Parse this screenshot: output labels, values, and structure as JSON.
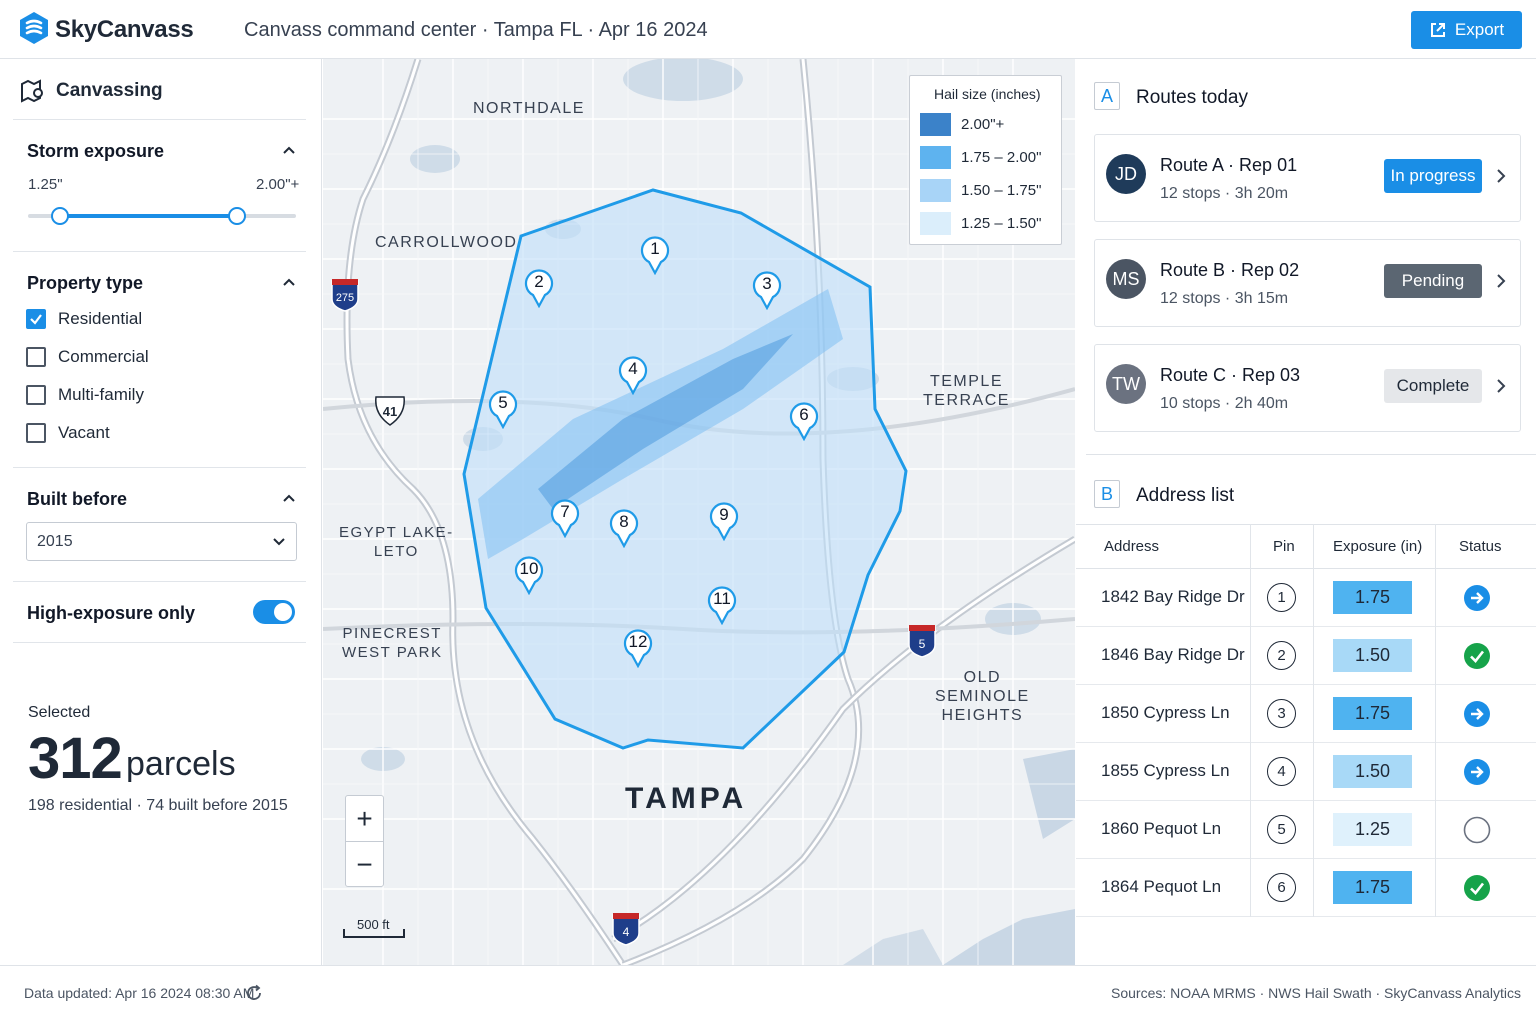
{
  "header": {
    "brand": "SkyCanvass",
    "title": "Canvass command center · Tampa FL · Apr 16 2024",
    "export_label": "Export"
  },
  "left": {
    "panel_title": "Canvassing",
    "storm": {
      "title": "Storm exposure",
      "min_label": "1.25\"",
      "max_label": "2.00\"+",
      "low_pct": 0.12,
      "high_pct": 0.78
    },
    "property": {
      "title": "Property type",
      "options": [
        {
          "label": "Residential",
          "checked": true
        },
        {
          "label": "Commercial",
          "checked": false
        },
        {
          "label": "Multi-family",
          "checked": false
        },
        {
          "label": "Vacant",
          "checked": false
        }
      ]
    },
    "built": {
      "title": "Built before",
      "value": "2015"
    },
    "high_exposure": {
      "label": "High-exposure only",
      "on": true
    },
    "selected": {
      "label": "Selected",
      "count": "312",
      "unit": "parcels",
      "sub": "198 residential · 74 built before 2015"
    }
  },
  "map": {
    "places": {
      "northdale": "NORTHDALE",
      "carrollwood": "CARROLLWOOD",
      "temple_terrace": "TEMPLE\nTERRACE",
      "egypt_lake": "EGYPT LAKE-\nLETO",
      "pinecrest": "PINECREST\nWEST PARK",
      "old_seminole": "OLD\nSEMINOLE\nHEIGHTS",
      "tampa": "TAMPA"
    },
    "highways": {
      "i275": "275",
      "us41": "41",
      "i5": "5",
      "i4": "4"
    },
    "legend": {
      "title": "Hail size (inches)",
      "items": [
        {
          "label": "2.00\"+",
          "color": "#3b82c9"
        },
        {
          "label": "1.75 – 2.00\"",
          "color": "#5eb3ef"
        },
        {
          "label": "1.50 – 1.75\"",
          "color": "#a8d4f7"
        },
        {
          "label": "1.25 – 1.50\"",
          "color": "#dbeefb"
        }
      ]
    },
    "pins": [
      "1",
      "2",
      "3",
      "4",
      "5",
      "6",
      "7",
      "8",
      "9",
      "10",
      "11",
      "12"
    ],
    "zoom_in": "+",
    "zoom_out": "−",
    "scale_label": "500 ft"
  },
  "right": {
    "routes_letter": "A",
    "routes_title": "Routes today",
    "routes": [
      {
        "initials": "JD",
        "name": "Route A · Rep 01",
        "sub": "12 stops · 3h 20m",
        "status": "In progress",
        "avatar_color": "#1f3b5a",
        "badge_bg": "#1a8ee6",
        "badge_fg": "#ffffff"
      },
      {
        "initials": "MS",
        "name": "Route B · Rep 02",
        "sub": "12 stops · 3h 15m",
        "status": "Pending",
        "avatar_color": "#4b5563",
        "badge_bg": "#5b6672",
        "badge_fg": "#ffffff"
      },
      {
        "initials": "TW",
        "name": "Route C · Rep 03",
        "sub": "10 stops · 2h 40m",
        "status": "Complete",
        "avatar_color": "#6b7280",
        "badge_bg": "#e5e7ea",
        "badge_fg": "#1f2937"
      }
    ],
    "address_letter": "B",
    "address_title": "Address list",
    "columns": {
      "address": "Address",
      "pin": "Pin",
      "exposure": "Exposure (in)",
      "status": "Status"
    },
    "rows": [
      {
        "address": "1842 Bay Ridge Dr",
        "pin": "1",
        "exposure": "1.75",
        "exposure_color": "#4fb3f0",
        "status": "arrow"
      },
      {
        "address": "1846 Bay Ridge Dr",
        "pin": "2",
        "exposure": "1.50",
        "exposure_color": "#a8d9f7",
        "status": "check"
      },
      {
        "address": "1850 Cypress Ln",
        "pin": "3",
        "exposure": "1.75",
        "exposure_color": "#4fb3f0",
        "status": "arrow"
      },
      {
        "address": "1855 Cypress Ln",
        "pin": "4",
        "exposure": "1.50",
        "exposure_color": "#a8d9f7",
        "status": "arrow"
      },
      {
        "address": "1860 Pequot Ln",
        "pin": "5",
        "exposure": "1.25",
        "exposure_color": "#dff1fc",
        "status": "empty"
      },
      {
        "address": "1864 Pequot Ln",
        "pin": "6",
        "exposure": "1.75",
        "exposure_color": "#4fb3f0",
        "status": "check"
      }
    ]
  },
  "footer": {
    "updated": "Data updated: Apr 16 2024 08:30 AM",
    "sources": "Sources: NOAA MRMS · NWS Hail Swath · SkyCanvass Analytics"
  }
}
